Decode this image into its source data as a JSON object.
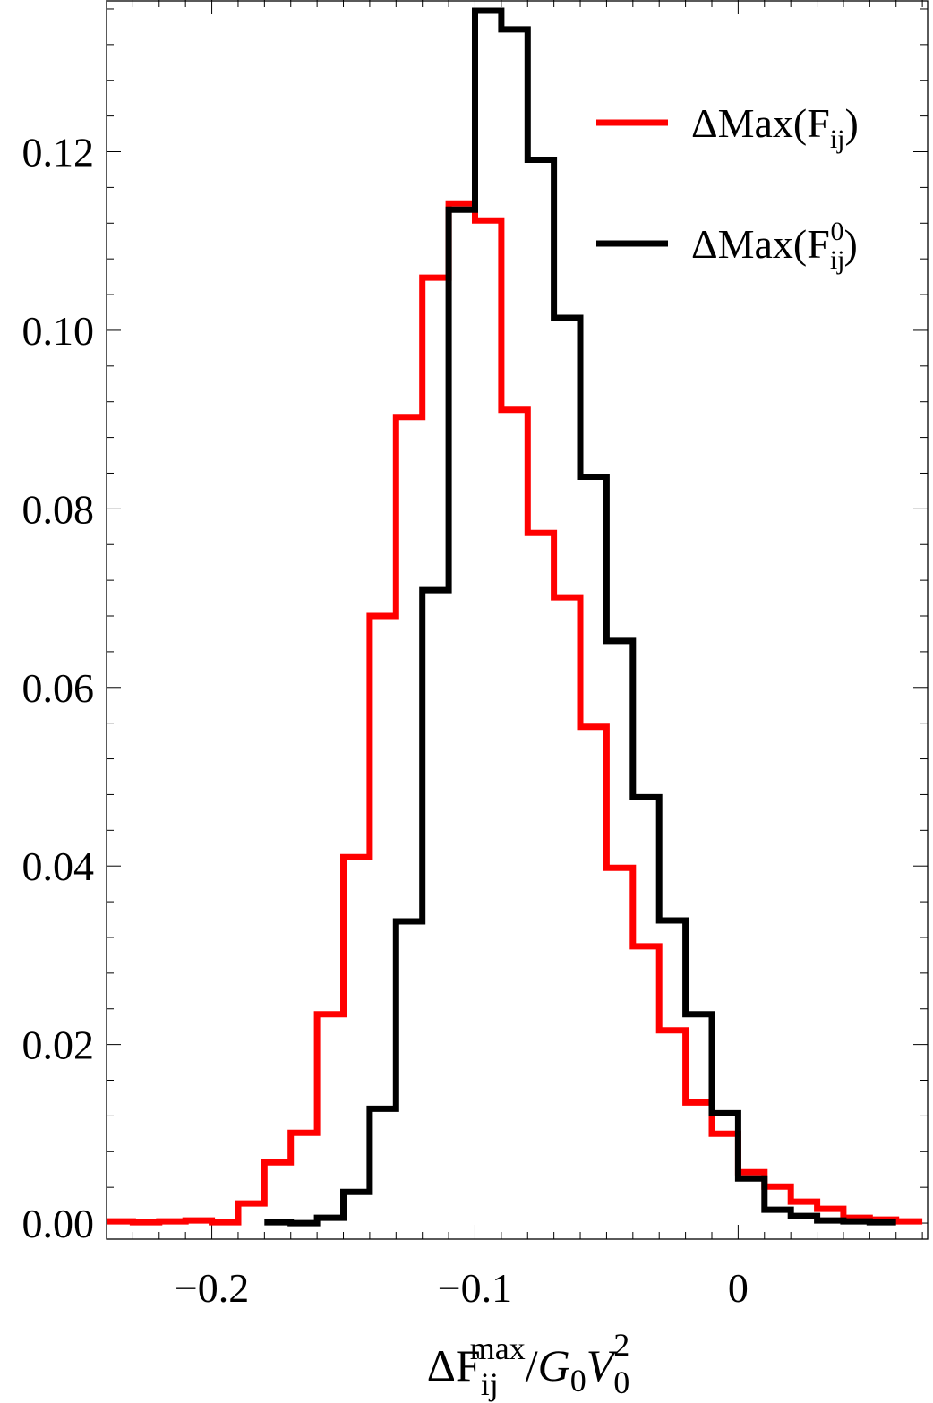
{
  "chart_data": {
    "type": "histogram-step",
    "xlabel": {
      "prefix": "ΔF",
      "subscript": "ij",
      "superscript": "max",
      "slash": "/",
      "g": "G",
      "g_sub": "0",
      "v": "V",
      "v_sub": "0",
      "v_sup": "2"
    },
    "ylabel": "",
    "xlim": [
      -0.24,
      0.072
    ],
    "ylim": [
      -0.0018,
      0.137
    ],
    "x_ticks": [
      {
        "value": -0.2,
        "label": "−0.2"
      },
      {
        "value": -0.1,
        "label": "−0.1"
      },
      {
        "value": 0,
        "label": "0"
      }
    ],
    "y_ticks": [
      {
        "value": 0.0,
        "label": "0.00"
      },
      {
        "value": 0.02,
        "label": "0.02"
      },
      {
        "value": 0.04,
        "label": "0.04"
      },
      {
        "value": 0.06,
        "label": "0.06"
      },
      {
        "value": 0.08,
        "label": "0.08"
      },
      {
        "value": 0.1,
        "label": "0.10"
      },
      {
        "value": 0.12,
        "label": "0.12"
      }
    ],
    "legend_position": "top-right",
    "series": [
      {
        "name": "ΔMax(F_ij)",
        "legend": {
          "prefix": "ΔMax(F",
          "sub": "ij",
          "sup": "",
          "suffix": ")"
        },
        "color": "#ff0000",
        "bin_edges": [
          -0.24,
          -0.23,
          -0.22,
          -0.21,
          -0.2,
          -0.19,
          -0.18,
          -0.17,
          -0.16,
          -0.15,
          -0.14,
          -0.13,
          -0.12,
          -0.11,
          -0.1,
          -0.09,
          -0.08,
          -0.07,
          -0.06,
          -0.05,
          -0.04,
          -0.03,
          -0.02,
          -0.01,
          0.0,
          0.01,
          0.02,
          0.03,
          0.04,
          0.05,
          0.06,
          0.07
        ],
        "values": [
          0.0002,
          0.0001,
          0.0002,
          0.0003,
          0.0001,
          0.0022,
          0.0068,
          0.0101,
          0.0234,
          0.041,
          0.068,
          0.0903,
          0.1059,
          0.1142,
          0.1123,
          0.0911,
          0.0773,
          0.0701,
          0.0556,
          0.0398,
          0.031,
          0.0216,
          0.0135,
          0.01,
          0.0057,
          0.0041,
          0.0024,
          0.0016,
          0.0006,
          0.0004,
          0.0002
        ]
      },
      {
        "name": "ΔMax(F^0_ij)",
        "legend": {
          "prefix": "ΔMax(F",
          "sub": "ij",
          "sup": "0",
          "suffix": ")"
        },
        "color": "#000000",
        "bin_edges": [
          -0.18,
          -0.17,
          -0.16,
          -0.15,
          -0.14,
          -0.13,
          -0.12,
          -0.11,
          -0.1,
          -0.09,
          -0.08,
          -0.07,
          -0.06,
          -0.05,
          -0.04,
          -0.03,
          -0.02,
          -0.01,
          0.0,
          0.01,
          0.02,
          0.03,
          0.04,
          0.05,
          0.06
        ],
        "values": [
          0.0001,
          0.0,
          0.0006,
          0.0035,
          0.0128,
          0.0338,
          0.0709,
          0.1135,
          0.1358,
          0.1337,
          0.1191,
          0.1014,
          0.0836,
          0.0652,
          0.0477,
          0.0339,
          0.0234,
          0.0123,
          0.005,
          0.0015,
          0.0008,
          0.0003,
          0.0002,
          0.0001
        ]
      }
    ]
  }
}
